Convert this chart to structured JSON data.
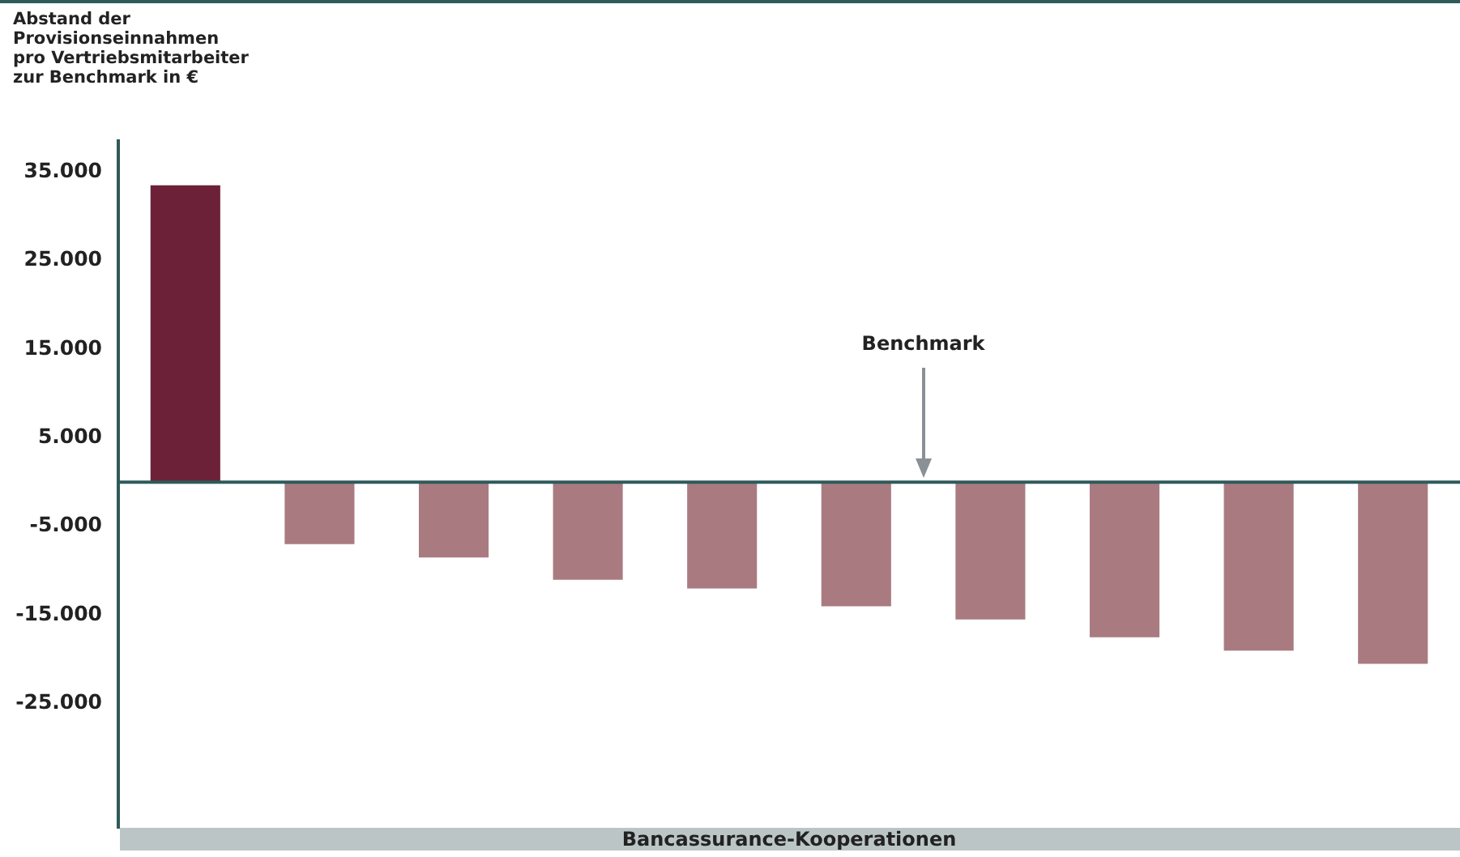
{
  "chart_data": {
    "type": "bar",
    "ylabel": "Abstand der Provisionseinnahmen pro Vertriebsmitarbeiter zur Benchmark in €",
    "xlabel": "Bancassurance-Kooperationen",
    "categories": [
      null,
      null,
      null,
      null,
      null,
      null,
      null,
      null,
      null,
      null
    ],
    "values": [
      33500,
      -7000,
      -8500,
      -11000,
      -12000,
      -14000,
      -15500,
      -17500,
      -19000,
      -20500
    ],
    "colors": [
      "#6d2139",
      "#a97b81",
      "#a97b81",
      "#a97b81",
      "#a97b81",
      "#a97b81",
      "#a97b81",
      "#a97b81",
      "#a97b81",
      "#a97b81"
    ],
    "ylim": [
      -39000,
      38500
    ],
    "yticks": [
      {
        "value": 35000,
        "label": "35.000"
      },
      {
        "value": 25000,
        "label": "25.000"
      },
      {
        "value": 15000,
        "label": "15.000"
      },
      {
        "value": 5000,
        "label": "5.000"
      },
      {
        "value": -5000,
        "label": "-5.000"
      },
      {
        "value": -15000,
        "label": "-15.000"
      },
      {
        "value": -25000,
        "label": "-25.000"
      }
    ],
    "annotations": [
      "Benchmark"
    ]
  }
}
